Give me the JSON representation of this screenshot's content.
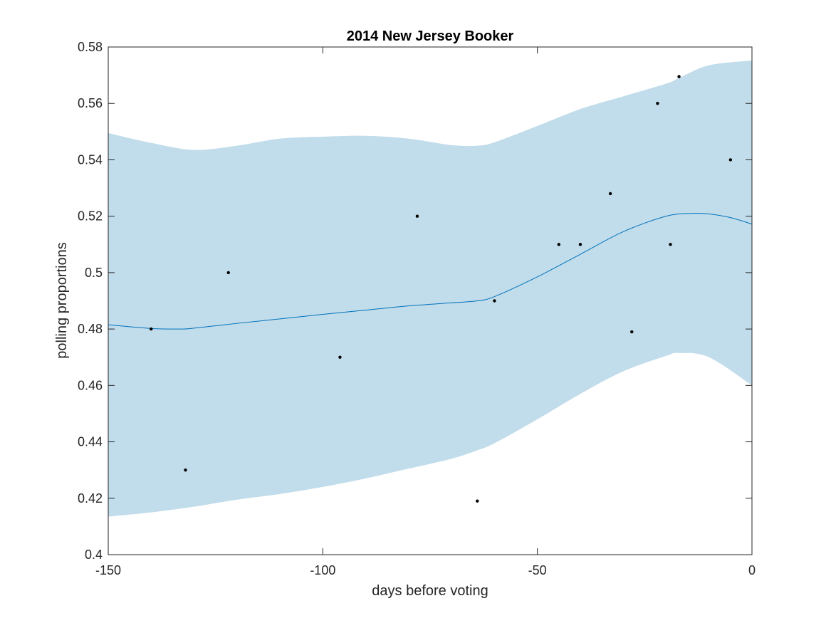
{
  "chart_data": {
    "type": "line",
    "title": "2014 New Jersey Booker",
    "xlabel": "days before voting",
    "ylabel": "polling proportions",
    "xlim": [
      -150,
      0
    ],
    "ylim": [
      0.4,
      0.58
    ],
    "x_ticks": [
      -150,
      -100,
      -50,
      0
    ],
    "x_tick_labels": [
      "-150",
      "-100",
      "-50",
      "0"
    ],
    "y_ticks": [
      0.4,
      0.42,
      0.44,
      0.46,
      0.48,
      0.5,
      0.52,
      0.54,
      0.56,
      0.58
    ],
    "y_tick_labels": [
      "0.4",
      "0.42",
      "0.44",
      "0.46",
      "0.48",
      "0.5",
      "0.52",
      "0.54",
      "0.56",
      "0.58"
    ],
    "grid": false,
    "colors": {
      "band": "#c1dcea",
      "line": "#0072bd",
      "points": "#000000"
    },
    "series": [
      {
        "kind": "band",
        "x": [
          -150,
          -140,
          -130,
          -120,
          -110,
          -100,
          -90,
          -80,
          -70,
          -64,
          -60,
          -50,
          -40,
          -30,
          -20,
          -17,
          -10,
          0
        ],
        "upper": [
          0.5495,
          0.546,
          0.5435,
          0.545,
          0.5475,
          0.5482,
          0.5485,
          0.5475,
          0.5452,
          0.545,
          0.5462,
          0.552,
          0.558,
          0.5625,
          0.567,
          0.569,
          0.5735,
          0.5752
        ],
        "lower": [
          0.4135,
          0.415,
          0.417,
          0.4195,
          0.4215,
          0.424,
          0.427,
          0.4305,
          0.434,
          0.437,
          0.4395,
          0.448,
          0.457,
          0.465,
          0.4705,
          0.4715,
          0.47,
          0.46
        ]
      },
      {
        "kind": "line",
        "x": [
          -150,
          -140,
          -133,
          -130,
          -120,
          -110,
          -100,
          -90,
          -80,
          -70,
          -64,
          -60,
          -50,
          -40,
          -30,
          -20,
          -14,
          -10,
          -5,
          0
        ],
        "y": [
          0.4815,
          0.4802,
          0.48,
          0.4803,
          0.482,
          0.4836,
          0.4852,
          0.4867,
          0.4882,
          0.4893,
          0.49,
          0.4915,
          0.4985,
          0.5065,
          0.5145,
          0.52,
          0.521,
          0.5208,
          0.5195,
          0.5172
        ]
      },
      {
        "kind": "scatter",
        "x": [
          -140,
          -132,
          -122,
          -96,
          -78,
          -64,
          -60,
          -45,
          -40,
          -33,
          -28,
          -22,
          -19,
          -17,
          -5
        ],
        "y": [
          0.48,
          0.43,
          0.5,
          0.47,
          0.52,
          0.419,
          0.49,
          0.51,
          0.51,
          0.528,
          0.479,
          0.56,
          0.51,
          0.5695,
          0.54
        ]
      }
    ]
  }
}
